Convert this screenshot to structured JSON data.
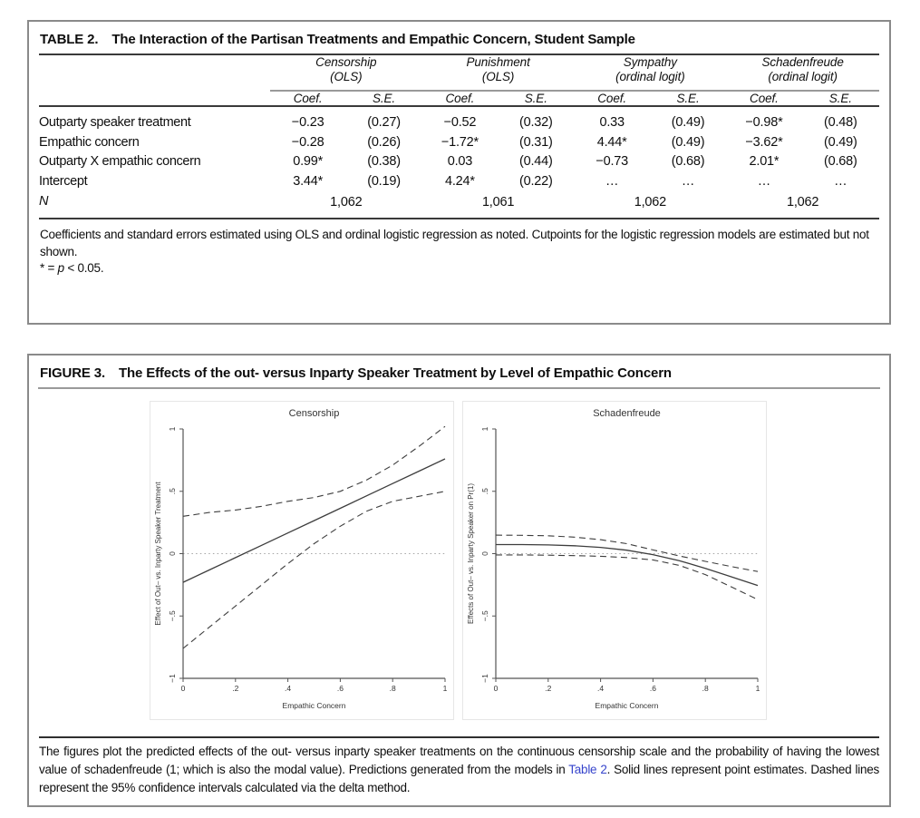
{
  "table": {
    "label": "TABLE 2.",
    "title": "The Interaction of the Partisan Treatments and Empathic Concern, Student Sample",
    "col_groups": [
      {
        "name": "Censorship",
        "sub": "(OLS)"
      },
      {
        "name": "Punishment",
        "sub": "(OLS)"
      },
      {
        "name": "Sympathy",
        "sub": "(ordinal logit)"
      },
      {
        "name": "Schadenfreude",
        "sub": "(ordinal logit)"
      }
    ],
    "sub_headers": [
      "Coef.",
      "S.E."
    ],
    "rows": [
      {
        "label": "Outparty speaker treatment",
        "cells": [
          "−0.23",
          "(0.27)",
          "−0.52",
          "(0.32)",
          "0.33",
          "(0.49)",
          "−0.98*",
          "(0.48)"
        ]
      },
      {
        "label": "Empathic concern",
        "cells": [
          "−0.28",
          "(0.26)",
          "−1.72*",
          "(0.31)",
          "4.44*",
          "(0.49)",
          "−3.62*",
          "(0.49)"
        ]
      },
      {
        "label": "Outparty X empathic concern",
        "cells": [
          "0.99*",
          "(0.38)",
          "0.03",
          "(0.44)",
          "−0.73",
          "(0.68)",
          "2.01*",
          "(0.68)"
        ]
      },
      {
        "label": "Intercept",
        "cells": [
          "3.44*",
          "(0.19)",
          "4.24*",
          "(0.22)",
          "…",
          "…",
          "…",
          "…"
        ]
      }
    ],
    "n_row": {
      "label": "N",
      "values": [
        "1,062",
        "1,061",
        "1,062",
        "1,062"
      ]
    },
    "note": "Coefficients and standard errors estimated using OLS and ordinal logistic regression as noted. Cutpoints for the logistic regression models are estimated but not shown.",
    "sig_note": {
      "prefix": "* = ",
      "italic": "p",
      "suffix": " < 0.05."
    }
  },
  "figure": {
    "label": "FIGURE 3.",
    "title": "The Effects of the out- versus Inparty Speaker Treatment by Level of Empathic Concern",
    "caption": {
      "before_link": "The figures plot the predicted effects of the out- versus inparty speaker treatments on the continuous censorship scale and the probability of having the lowest value of schadenfreude (1; which is also the modal value). Predictions generated from the models in ",
      "link": "Table 2",
      "after_link": ". Solid lines represent point estimates. Dashed lines represent the 95% confidence intervals calculated via the delta method."
    },
    "link_color": "#3745cc"
  },
  "chart_data": [
    {
      "type": "line",
      "title": "Censorship",
      "xlabel": "Empathic Concern",
      "ylabel": "Effect of Out– vs. Inparty Speaker Treatment",
      "xlim": [
        0,
        1
      ],
      "ylim": [
        -1,
        1
      ],
      "grid": false,
      "legend": "none",
      "zero_reference_line": 0,
      "xticks": {
        "values": [
          0,
          0.2,
          0.4,
          0.6,
          0.8,
          1
        ],
        "labels": [
          "0",
          ".2",
          ".4",
          ".6",
          ".8",
          "1"
        ]
      },
      "yticks": {
        "values": [
          -1,
          -0.5,
          0,
          0.5,
          1
        ],
        "labels": [
          "−1",
          "−.5",
          "0",
          ".5",
          "1"
        ]
      },
      "x": [
        0,
        0.1,
        0.2,
        0.3,
        0.4,
        0.5,
        0.6,
        0.7,
        0.8,
        0.9,
        1
      ],
      "series": [
        {
          "name": "point estimate",
          "style": "solid",
          "values": [
            -0.23,
            -0.131,
            -0.032,
            0.067,
            0.166,
            0.265,
            0.364,
            0.463,
            0.562,
            0.661,
            0.76
          ]
        },
        {
          "name": "95% CI upper",
          "style": "dashed",
          "values": [
            0.3,
            0.33,
            0.35,
            0.38,
            0.42,
            0.45,
            0.5,
            0.59,
            0.71,
            0.86,
            1.02
          ]
        },
        {
          "name": "95% CI lower",
          "style": "dashed",
          "values": [
            -0.76,
            -0.59,
            -0.42,
            -0.25,
            -0.08,
            0.08,
            0.22,
            0.34,
            0.42,
            0.46,
            0.5
          ]
        }
      ]
    },
    {
      "type": "line",
      "title": "Schadenfreude",
      "xlabel": "Empathic Concern",
      "ylabel": "Effects of Out– vs. Inparty Speaker on Pr(1)",
      "xlim": [
        0,
        1
      ],
      "ylim": [
        -1,
        1
      ],
      "grid": false,
      "legend": "none",
      "zero_reference_line": 0,
      "xticks": {
        "values": [
          0,
          0.2,
          0.4,
          0.6,
          0.8,
          1
        ],
        "labels": [
          "0",
          ".2",
          ".4",
          ".6",
          ".8",
          "1"
        ]
      },
      "yticks": {
        "values": [
          -1,
          -0.5,
          0,
          0.5,
          1
        ],
        "labels": [
          "−1",
          "−.5",
          "0",
          ".5",
          "1"
        ]
      },
      "x": [
        0,
        0.1,
        0.2,
        0.3,
        0.4,
        0.5,
        0.6,
        0.7,
        0.8,
        0.9,
        1
      ],
      "series": [
        {
          "name": "point estimate",
          "style": "solid",
          "values": [
            0.073,
            0.073,
            0.07,
            0.063,
            0.05,
            0.028,
            -0.008,
            -0.056,
            -0.118,
            -0.186,
            -0.255
          ]
        },
        {
          "name": "95% CI upper",
          "style": "dashed",
          "values": [
            0.148,
            0.147,
            0.143,
            0.132,
            0.112,
            0.08,
            0.03,
            -0.018,
            -0.062,
            -0.104,
            -0.143
          ]
        },
        {
          "name": "95% CI lower",
          "style": "dashed",
          "values": [
            -0.01,
            -0.01,
            -0.012,
            -0.016,
            -0.021,
            -0.031,
            -0.05,
            -0.094,
            -0.168,
            -0.268,
            -0.368
          ]
        }
      ]
    }
  ]
}
